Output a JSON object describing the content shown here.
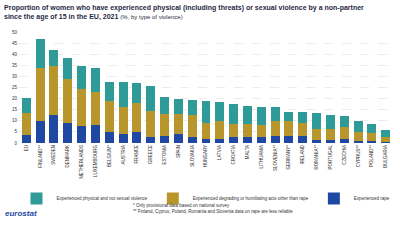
{
  "chart_data": {
    "type": "bar",
    "stacked": true,
    "title": [
      "Proportion of women who have experienced physical (including threats) or sexual violence by a non-partner",
      "since the age of 15 in the EU, 2021"
    ],
    "subtitle": "(%, by type of violence)",
    "categories": [
      "EU",
      "FINLAND**",
      "SWEDEN",
      "DENMARK",
      "NETHERLANDS",
      "LUXEMBOURG",
      "BELGIUM*",
      "AUSTRIA",
      "FRANCE",
      "GREECE",
      "ESTONIA",
      "SPAIN",
      "SLOVAKIA",
      "HUNGARY",
      "LATVIA",
      "CROATIA",
      "MALTA",
      "LITHUANIA",
      "SLOVENIA**",
      "GERMANY*",
      "IRELAND",
      "ROMANIA**",
      "PORTUGAL",
      "CZECHIA",
      "CYPRUS**",
      "POLAND**",
      "BULGARIA"
    ],
    "series": [
      {
        "name": "Experienced rape",
        "color": "#1f48a3",
        "values": [
          3.5,
          10,
          12.5,
          9,
          7.5,
          8,
          5,
          4,
          5,
          2.5,
          3,
          4,
          2.5,
          2,
          2,
          2.5,
          2.5,
          2.5,
          3,
          3,
          3,
          1.5,
          1.5,
          2,
          1,
          1,
          0.5
        ]
      },
      {
        "name": "Experienced degrading or humiliating acts other than rape",
        "color": "#b8962b",
        "values": [
          10,
          24,
          22,
          20,
          17,
          15,
          14,
          12,
          13,
          12,
          10,
          9,
          10,
          7,
          8,
          6,
          6,
          5.5,
          7,
          7,
          6,
          5,
          5,
          5,
          4,
          3.5,
          2
        ]
      },
      {
        "name": "Experienced physical and not sexual violence",
        "color": "#2e9b98",
        "values": [
          6.7,
          13,
          7.5,
          9.5,
          10,
          11,
          8.5,
          11.5,
          9,
          11,
          7.5,
          7,
          7,
          10,
          8.5,
          9,
          8,
          8,
          6,
          4,
          5,
          7,
          6,
          5,
          5,
          4,
          3.5
        ]
      }
    ],
    "ylim": [
      0,
      50
    ],
    "yticks": [
      0,
      5,
      10,
      15,
      20,
      25,
      30,
      35,
      40,
      45,
      50
    ],
    "grid": true,
    "legend": "bottom",
    "notes": [
      "* Only provisional data based on national survey",
      "** Finland, Cyprus, Poland, Romania and Slovenia data on rape are less reliable"
    ],
    "source": "eurostat"
  }
}
